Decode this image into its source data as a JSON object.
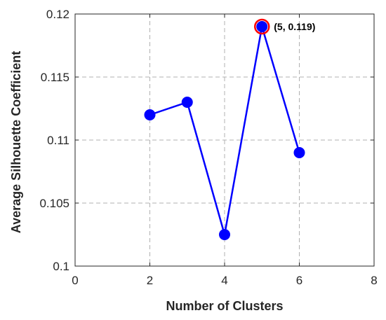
{
  "chart_data": {
    "type": "line",
    "title": "",
    "xlabel": "Number of Clusters",
    "ylabel": "Average Silhouette Coefficient",
    "xlim": [
      0,
      8
    ],
    "ylim": [
      0.1,
      0.12
    ],
    "xticks": [
      0,
      2,
      4,
      6,
      8
    ],
    "xtick_labels": [
      "0",
      "2",
      "4",
      "6",
      "8"
    ],
    "yticks": [
      0.1,
      0.105,
      0.11,
      0.115,
      0.12
    ],
    "ytick_labels": [
      "0.1",
      "0.105",
      "0.11",
      "0.115",
      "0.12"
    ],
    "grid": true,
    "series": [
      {
        "x": [
          2,
          3,
          4,
          5,
          6
        ],
        "y": [
          0.112,
          0.113,
          0.1025,
          0.119,
          0.109
        ],
        "color": "#0000ff"
      }
    ],
    "highlight": {
      "x": 5,
      "y": 0.119,
      "color": "#ff0000",
      "label": "(5, 0.119)"
    }
  }
}
